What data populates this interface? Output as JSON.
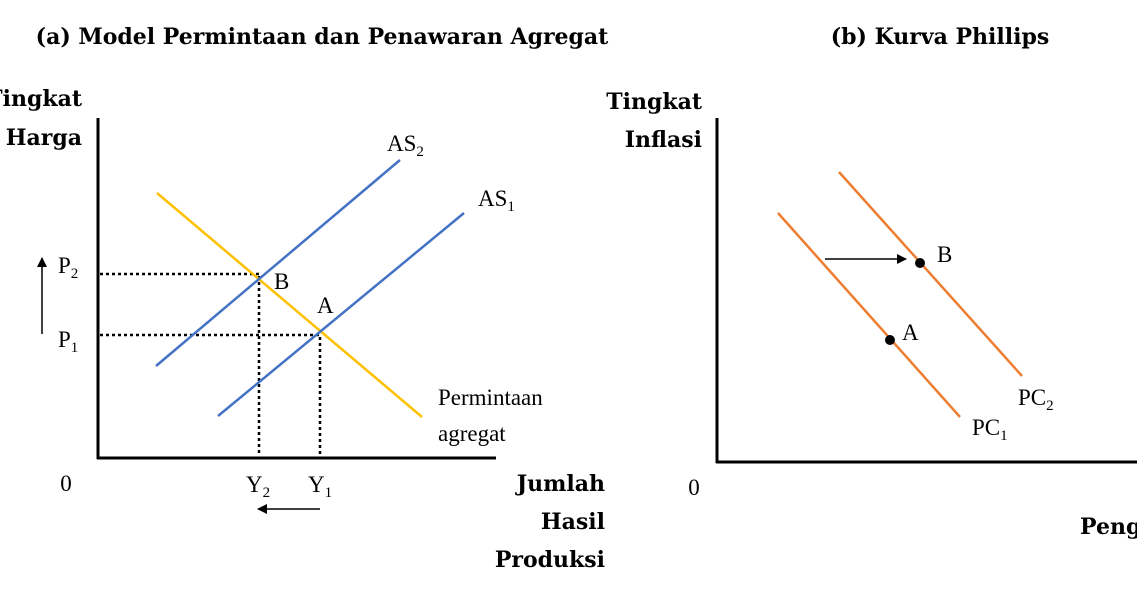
{
  "panel_a": {
    "title": "(a) Model Permintaan dan Penawaran Agregat",
    "y_axis_line1": "Tingkat",
    "y_axis_line2": "Harga",
    "x_axis_line1": "Jumlah",
    "x_axis_line2": "Hasil",
    "x_axis_line3": "Produksi",
    "origin": "0",
    "p2_base": "P",
    "p2_sub": "2",
    "p1_base": "P",
    "p1_sub": "1",
    "y2_base": "Y",
    "y2_sub": "2",
    "y1_base": "Y",
    "y1_sub": "1",
    "as2_base": "AS",
    "as2_sub": "2",
    "as1_base": "AS",
    "as1_sub": "1",
    "point_b": "B",
    "point_a": "A",
    "ad_line1": "Permintaan",
    "ad_line2": "agregat"
  },
  "panel_b": {
    "title": "(b) Kurva Phillips",
    "y_axis_line1": "Tingkat",
    "y_axis_line2": "Inflasi",
    "x_axis_label": "Peng",
    "origin": "0",
    "point_b": "B",
    "point_a": "A",
    "pc2_base": "PC",
    "pc2_sub": "2",
    "pc1_base": "PC",
    "pc1_sub": "1"
  },
  "colors": {
    "aggregate_supply": "#4472c4",
    "aggregate_demand": "#ffc000",
    "phillips_curve": "#ed7d31",
    "axes": "#000000"
  }
}
